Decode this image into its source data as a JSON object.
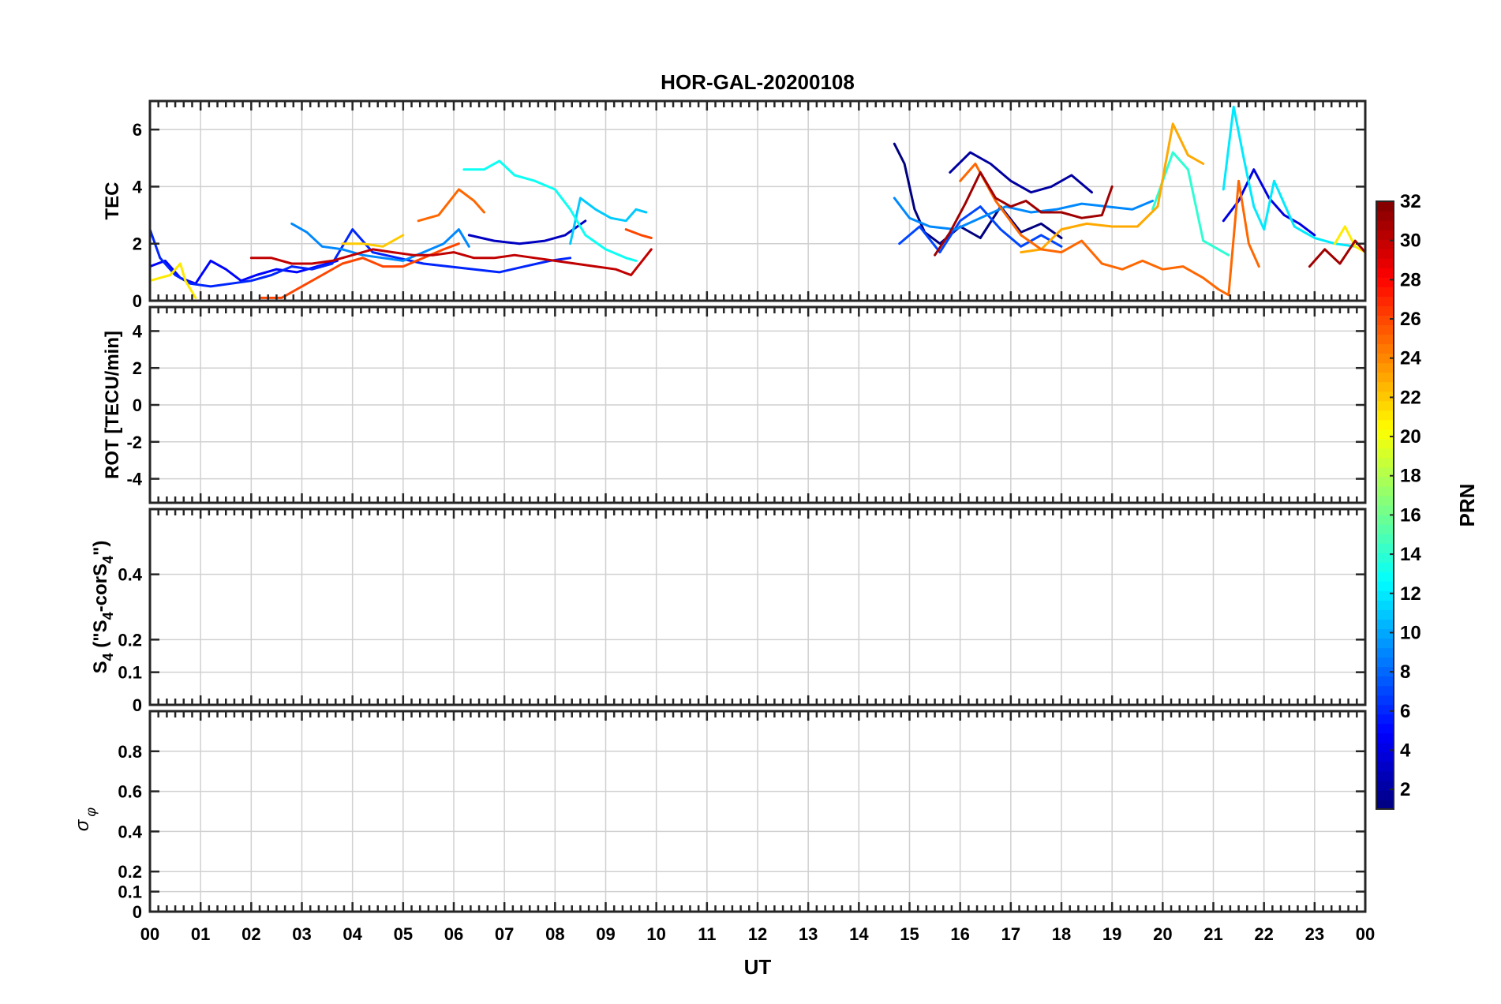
{
  "chart_data": {
    "type": "line",
    "title": "HOR-GAL-20200108",
    "xlabel": "UT",
    "x_tick_labels": [
      "00",
      "01",
      "02",
      "03",
      "04",
      "05",
      "06",
      "07",
      "08",
      "09",
      "10",
      "11",
      "12",
      "13",
      "14",
      "15",
      "16",
      "17",
      "18",
      "19",
      "20",
      "21",
      "22",
      "23",
      "00"
    ],
    "xlim": [
      0,
      24
    ],
    "colorbar": {
      "label": "PRN",
      "range": [
        1,
        32
      ],
      "ticks": [
        2,
        4,
        6,
        8,
        10,
        12,
        14,
        16,
        18,
        20,
        22,
        24,
        26,
        28,
        30,
        32
      ],
      "tick_labels": [
        "2",
        "4",
        "6",
        "8",
        "10",
        "12",
        "14",
        "16",
        "18",
        "20",
        "22",
        "24",
        "26",
        "28",
        "30",
        "32"
      ],
      "colormap": "jet"
    },
    "panels": [
      {
        "id": "tec",
        "ylabel": "TEC",
        "ylim": [
          0,
          7
        ],
        "yticks": [
          0,
          2,
          4,
          6
        ],
        "ytick_labels": [
          "0",
          "2",
          "4",
          "6"
        ]
      },
      {
        "id": "rot",
        "ylabel": "ROT [TECU/min]",
        "ylim": [
          -5.3,
          5.3
        ],
        "yticks": [
          -4,
          -2,
          0,
          2,
          4
        ],
        "ytick_labels": [
          "-4",
          "-2",
          "0",
          "2",
          "4"
        ]
      },
      {
        "id": "s4",
        "ylabel_main": "S",
        "ylabel_sub1": "4",
        "ylabel_mid": " (\"S",
        "ylabel_sub2": "4",
        "ylabel_mid2": "-corS",
        "ylabel_sub3": "4",
        "ylabel_end": "\")",
        "ylim": [
          0,
          0.6
        ],
        "yticks": [
          0,
          0.1,
          0.2,
          0.4
        ],
        "ytick_labels": [
          "0",
          "0.1",
          "0.2",
          "0.4"
        ]
      },
      {
        "id": "sigphi",
        "ylabel_main": "σ",
        "ylabel_sub": "φ",
        "ylim": [
          0,
          1
        ],
        "yticks": [
          0,
          0.1,
          0.2,
          0.4,
          0.6,
          0.8
        ],
        "ytick_labels": [
          "0",
          "0.1",
          "0.2",
          "0.4",
          "0.6",
          "0.8"
        ]
      }
    ],
    "series": [
      {
        "name": "PRN 1",
        "prn": 1,
        "panel": "tec",
        "points": [
          [
            14.7,
            5.5
          ],
          [
            14.9,
            4.8
          ],
          [
            15.1,
            3.2
          ],
          [
            15.3,
            2.4
          ],
          [
            15.6,
            2.0
          ],
          [
            16.0,
            2.6
          ],
          [
            16.4,
            2.2
          ],
          [
            16.8,
            3.3
          ],
          [
            17.2,
            2.4
          ],
          [
            17.6,
            2.7
          ],
          [
            18.0,
            2.2
          ]
        ]
      },
      {
        "name": "PRN 2",
        "prn": 2,
        "panel": "tec",
        "points": [
          [
            15.8,
            4.5
          ],
          [
            16.2,
            5.2
          ],
          [
            16.6,
            4.8
          ],
          [
            17.0,
            4.2
          ],
          [
            17.4,
            3.8
          ],
          [
            17.8,
            4.0
          ],
          [
            18.2,
            4.4
          ],
          [
            18.6,
            3.8
          ]
        ]
      },
      {
        "name": "PRN 3",
        "prn": 3,
        "panel": "tec",
        "points": [
          [
            6.3,
            2.3
          ],
          [
            6.8,
            2.1
          ],
          [
            7.3,
            2.0
          ],
          [
            7.8,
            2.1
          ],
          [
            8.2,
            2.3
          ],
          [
            8.6,
            2.8
          ]
        ]
      },
      {
        "name": "PRN 4",
        "prn": 4,
        "panel": "tec",
        "points": [
          [
            21.2,
            2.8
          ],
          [
            21.5,
            3.5
          ],
          [
            21.8,
            4.6
          ],
          [
            22.1,
            3.6
          ],
          [
            22.4,
            3.0
          ],
          [
            22.7,
            2.7
          ],
          [
            23.0,
            2.3
          ]
        ]
      },
      {
        "name": "PRN 5",
        "prn": 5,
        "panel": "tec",
        "points": [
          [
            0.0,
            1.2
          ],
          [
            0.3,
            1.4
          ],
          [
            0.6,
            0.8
          ],
          [
            0.9,
            0.6
          ],
          [
            1.2,
            1.4
          ],
          [
            1.5,
            1.1
          ],
          [
            1.8,
            0.7
          ],
          [
            2.1,
            0.9
          ],
          [
            2.5,
            1.1
          ],
          [
            2.9,
            1.0
          ],
          [
            3.3,
            1.2
          ],
          [
            3.7,
            1.4
          ]
        ]
      },
      {
        "name": "PRN 6",
        "prn": 6,
        "panel": "tec",
        "points": [
          [
            0.0,
            2.5
          ],
          [
            0.2,
            1.5
          ],
          [
            0.5,
            0.9
          ],
          [
            0.8,
            0.6
          ],
          [
            1.2,
            0.5
          ],
          [
            1.6,
            0.6
          ],
          [
            2.0,
            0.7
          ],
          [
            2.4,
            0.9
          ],
          [
            2.8,
            1.2
          ],
          [
            3.2,
            1.1
          ],
          [
            3.6,
            1.3
          ],
          [
            4.0,
            2.5
          ],
          [
            4.4,
            1.7
          ],
          [
            4.9,
            1.5
          ],
          [
            5.4,
            1.3
          ],
          [
            5.9,
            1.2
          ],
          [
            6.4,
            1.1
          ],
          [
            6.9,
            1.0
          ],
          [
            7.4,
            1.2
          ],
          [
            7.9,
            1.4
          ],
          [
            8.3,
            1.5
          ]
        ]
      },
      {
        "name": "PRN 7",
        "prn": 7,
        "panel": "tec",
        "points": [
          [
            14.8,
            2.0
          ],
          [
            15.2,
            2.6
          ],
          [
            15.6,
            1.7
          ],
          [
            16.0,
            2.8
          ],
          [
            16.4,
            3.3
          ],
          [
            16.8,
            2.5
          ],
          [
            17.2,
            1.9
          ],
          [
            17.6,
            2.3
          ],
          [
            18.0,
            1.9
          ]
        ]
      },
      {
        "name": "PRN 9",
        "prn": 9,
        "panel": "tec",
        "points": [
          [
            2.8,
            2.7
          ],
          [
            3.1,
            2.4
          ],
          [
            3.4,
            1.9
          ],
          [
            3.8,
            1.8
          ],
          [
            4.2,
            1.6
          ],
          [
            4.6,
            1.5
          ],
          [
            5.0,
            1.4
          ],
          [
            5.4,
            1.7
          ],
          [
            5.8,
            2.0
          ],
          [
            6.1,
            2.5
          ],
          [
            6.3,
            1.9
          ]
        ]
      },
      {
        "name": "PRN 9b",
        "prn": 9,
        "panel": "tec",
        "points": [
          [
            14.7,
            3.6
          ],
          [
            15.0,
            2.9
          ],
          [
            15.4,
            2.6
          ],
          [
            15.9,
            2.5
          ],
          [
            16.4,
            2.9
          ],
          [
            16.9,
            3.3
          ],
          [
            17.4,
            3.1
          ],
          [
            17.9,
            3.2
          ],
          [
            18.4,
            3.4
          ],
          [
            18.9,
            3.3
          ],
          [
            19.4,
            3.2
          ],
          [
            19.8,
            3.5
          ]
        ]
      },
      {
        "name": "PRN 11",
        "prn": 11,
        "panel": "tec",
        "points": [
          [
            8.3,
            2.0
          ],
          [
            8.5,
            3.6
          ],
          [
            8.8,
            3.2
          ],
          [
            9.1,
            2.9
          ],
          [
            9.4,
            2.8
          ],
          [
            9.6,
            3.2
          ],
          [
            9.8,
            3.1
          ]
        ]
      },
      {
        "name": "PRN 12",
        "prn": 12,
        "panel": "tec",
        "points": [
          [
            21.2,
            3.9
          ],
          [
            21.4,
            6.8
          ],
          [
            21.6,
            5.0
          ],
          [
            21.8,
            3.3
          ],
          [
            22.0,
            2.5
          ],
          [
            22.2,
            4.2
          ],
          [
            22.4,
            3.4
          ],
          [
            22.6,
            2.6
          ],
          [
            22.8,
            2.4
          ],
          [
            23.0,
            2.2
          ],
          [
            23.4,
            2.0
          ],
          [
            23.8,
            1.9
          ]
        ]
      },
      {
        "name": "PRN 13",
        "prn": 13,
        "panel": "tec",
        "points": [
          [
            6.2,
            4.6
          ],
          [
            6.6,
            4.6
          ],
          [
            6.9,
            4.9
          ],
          [
            7.2,
            4.4
          ],
          [
            7.6,
            4.2
          ],
          [
            8.0,
            3.9
          ],
          [
            8.3,
            3.2
          ],
          [
            8.6,
            2.3
          ],
          [
            9.0,
            1.8
          ],
          [
            9.4,
            1.5
          ],
          [
            9.6,
            1.4
          ]
        ]
      },
      {
        "name": "PRN 14",
        "prn": 14,
        "panel": "tec",
        "points": [
          [
            19.8,
            3.2
          ],
          [
            20.2,
            5.2
          ],
          [
            20.5,
            4.6
          ],
          [
            20.8,
            2.1
          ],
          [
            21.1,
            1.8
          ],
          [
            21.3,
            1.6
          ]
        ]
      },
      {
        "name": "PRN 21",
        "prn": 21,
        "panel": "tec",
        "points": [
          [
            0.0,
            0.7
          ],
          [
            0.2,
            0.8
          ],
          [
            0.4,
            0.9
          ],
          [
            0.6,
            1.3
          ],
          [
            0.7,
            0.7
          ],
          [
            0.9,
            0.1
          ]
        ]
      },
      {
        "name": "PRN 21b",
        "prn": 21,
        "panel": "tec",
        "points": [
          [
            23.4,
            2.0
          ],
          [
            23.6,
            2.6
          ],
          [
            23.8,
            1.9
          ],
          [
            24.0,
            1.7
          ]
        ]
      },
      {
        "name": "PRN 22",
        "prn": 22,
        "panel": "tec",
        "points": [
          [
            3.8,
            2.0
          ],
          [
            4.2,
            2.0
          ],
          [
            4.6,
            1.9
          ],
          [
            5.0,
            2.3
          ]
        ]
      },
      {
        "name": "PRN 23",
        "prn": 23,
        "panel": "tec",
        "points": [
          [
            17.2,
            1.7
          ],
          [
            17.6,
            1.8
          ],
          [
            18.0,
            2.5
          ],
          [
            18.5,
            2.7
          ],
          [
            19.0,
            2.6
          ],
          [
            19.5,
            2.6
          ],
          [
            19.9,
            3.3
          ],
          [
            20.2,
            6.2
          ],
          [
            20.5,
            5.1
          ],
          [
            20.8,
            4.8
          ]
        ]
      },
      {
        "name": "PRN 25",
        "prn": 25,
        "panel": "tec",
        "points": [
          [
            5.3,
            2.8
          ],
          [
            5.7,
            3.0
          ],
          [
            6.1,
            3.9
          ],
          [
            6.4,
            3.5
          ],
          [
            6.6,
            3.1
          ]
        ]
      },
      {
        "name": "PRN 25b",
        "prn": 25,
        "panel": "tec",
        "points": [
          [
            16.0,
            4.2
          ],
          [
            16.3,
            4.8
          ],
          [
            16.7,
            3.5
          ],
          [
            17.2,
            2.3
          ],
          [
            17.6,
            1.8
          ],
          [
            18.0,
            1.7
          ],
          [
            18.4,
            2.1
          ],
          [
            18.8,
            1.3
          ],
          [
            19.2,
            1.1
          ],
          [
            19.6,
            1.4
          ],
          [
            20.0,
            1.1
          ],
          [
            20.4,
            1.2
          ],
          [
            20.8,
            0.8
          ],
          [
            21.1,
            0.4
          ],
          [
            21.3,
            0.2
          ],
          [
            21.5,
            4.2
          ],
          [
            21.7,
            2.0
          ],
          [
            21.9,
            1.2
          ]
        ]
      },
      {
        "name": "PRN 26",
        "prn": 26,
        "panel": "tec",
        "points": [
          [
            2.2,
            0.1
          ],
          [
            2.6,
            0.1
          ],
          [
            3.0,
            0.5
          ],
          [
            3.4,
            0.9
          ],
          [
            3.8,
            1.3
          ],
          [
            4.2,
            1.5
          ],
          [
            4.6,
            1.2
          ],
          [
            5.0,
            1.2
          ],
          [
            5.4,
            1.5
          ],
          [
            5.8,
            1.8
          ],
          [
            6.1,
            2.0
          ]
        ]
      },
      {
        "name": "PRN 26b",
        "prn": 26,
        "panel": "tec",
        "points": [
          [
            9.4,
            2.5
          ],
          [
            9.7,
            2.3
          ],
          [
            9.9,
            2.2
          ]
        ]
      },
      {
        "name": "PRN 30",
        "prn": 30,
        "panel": "tec",
        "points": [
          [
            2.0,
            1.5
          ],
          [
            2.4,
            1.5
          ],
          [
            2.8,
            1.3
          ],
          [
            3.2,
            1.3
          ],
          [
            3.6,
            1.4
          ],
          [
            4.0,
            1.6
          ],
          [
            4.4,
            1.8
          ],
          [
            4.8,
            1.7
          ],
          [
            5.2,
            1.6
          ],
          [
            5.6,
            1.6
          ],
          [
            6.0,
            1.7
          ],
          [
            6.4,
            1.5
          ],
          [
            6.8,
            1.5
          ],
          [
            7.2,
            1.6
          ],
          [
            7.6,
            1.5
          ],
          [
            8.0,
            1.4
          ],
          [
            8.4,
            1.3
          ],
          [
            8.8,
            1.2
          ],
          [
            9.2,
            1.1
          ],
          [
            9.5,
            0.9
          ],
          [
            9.9,
            1.8
          ]
        ]
      },
      {
        "name": "PRN 31",
        "prn": 31,
        "panel": "tec",
        "points": [
          [
            15.5,
            1.6
          ],
          [
            15.8,
            2.4
          ],
          [
            16.1,
            3.4
          ],
          [
            16.4,
            4.5
          ],
          [
            16.7,
            3.6
          ],
          [
            17.0,
            3.3
          ],
          [
            17.3,
            3.5
          ],
          [
            17.6,
            3.1
          ],
          [
            18.0,
            3.1
          ],
          [
            18.4,
            2.9
          ],
          [
            18.8,
            3.0
          ],
          [
            19.0,
            4.0
          ]
        ]
      },
      {
        "name": "PRN 31b",
        "prn": 31,
        "panel": "tec",
        "points": [
          [
            22.9,
            1.2
          ],
          [
            23.2,
            1.8
          ],
          [
            23.5,
            1.3
          ],
          [
            23.8,
            2.1
          ],
          [
            24.0,
            1.7
          ]
        ]
      }
    ]
  }
}
